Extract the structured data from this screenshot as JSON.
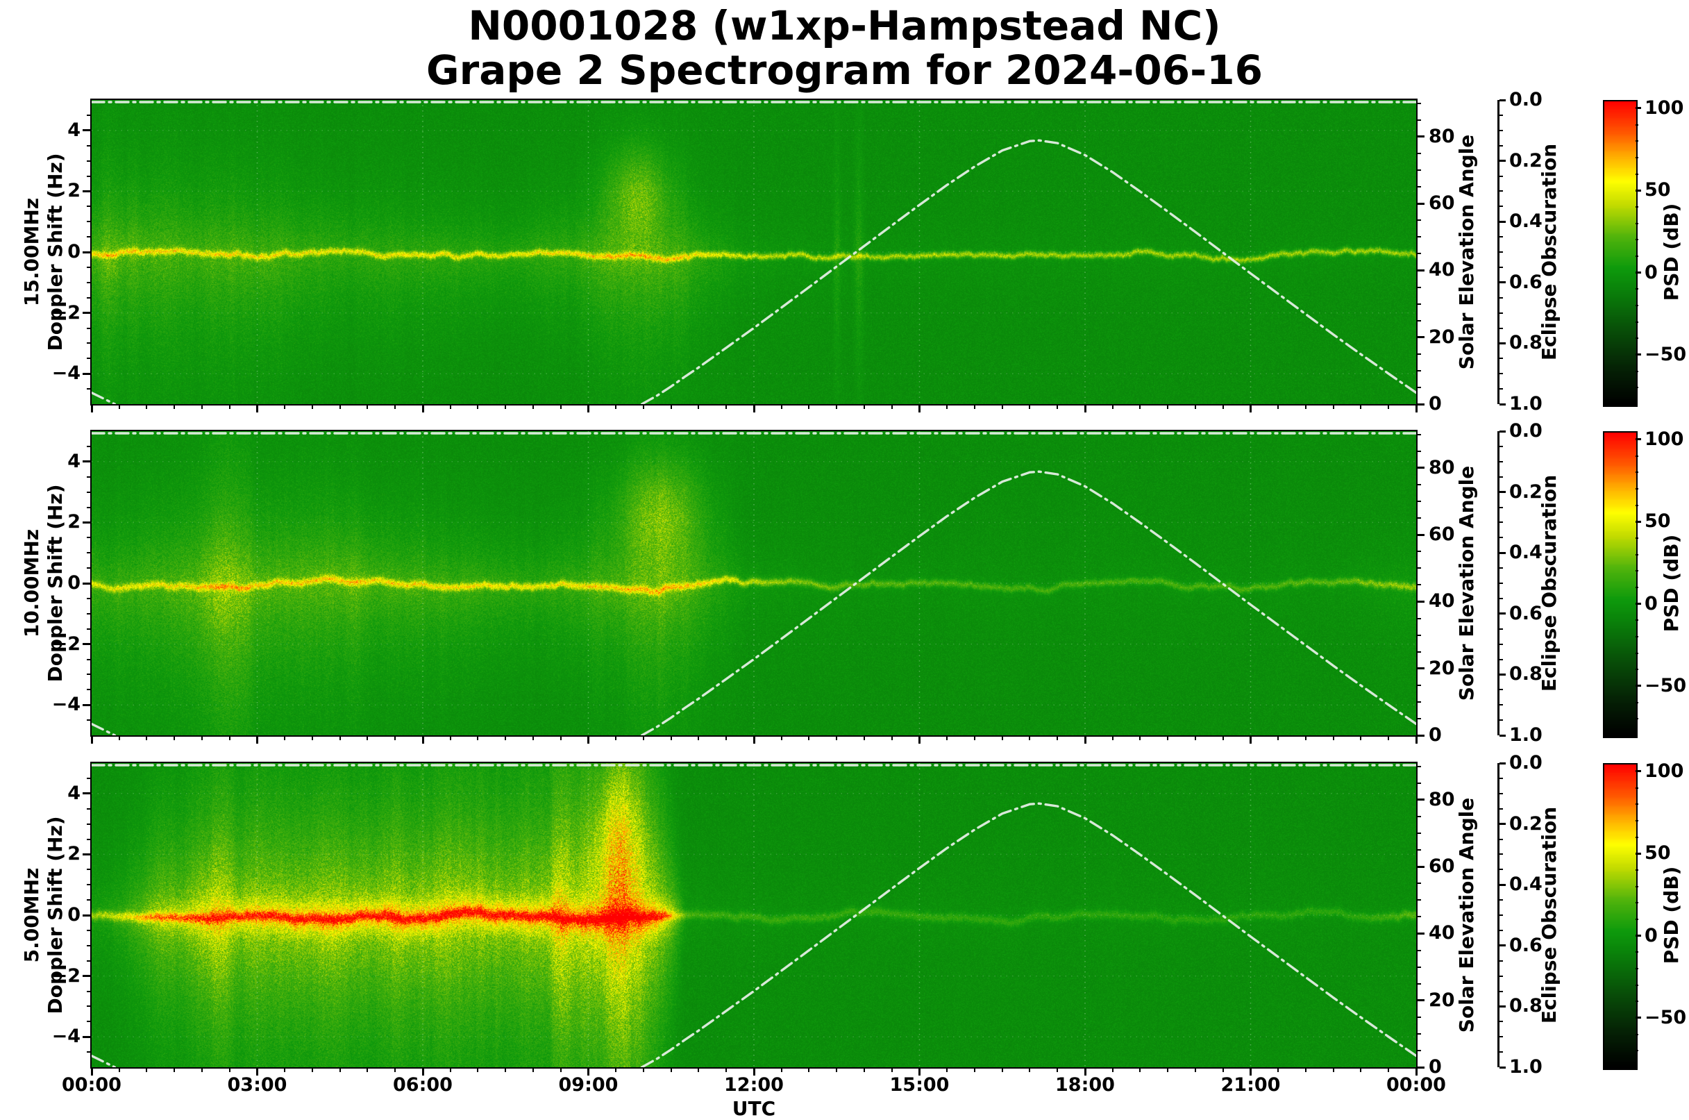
{
  "title": {
    "line1": "N0001028 (w1xp-Hampstead NC)",
    "line2": "Grape 2 Spectrogram for 2024-06-16"
  },
  "x_axis": {
    "label": "UTC",
    "ticks": [
      "00:00",
      "03:00",
      "06:00",
      "09:00",
      "12:00",
      "15:00",
      "18:00",
      "21:00",
      "00:00"
    ],
    "tick_hours": [
      0,
      3,
      6,
      9,
      12,
      15,
      18,
      21,
      24
    ]
  },
  "panels": [
    {
      "freq_label": "15.00MHz",
      "doppler_label": "Doppler Shift (Hz)",
      "y_ticks": [
        "4",
        "2",
        "0",
        "−2",
        "−4"
      ],
      "y_tick_values": [
        4,
        2,
        0,
        -2,
        -4
      ]
    },
    {
      "freq_label": "10.00MHz",
      "doppler_label": "Doppler Shift (Hz)",
      "y_ticks": [
        "4",
        "2",
        "0",
        "−2",
        "−4"
      ],
      "y_tick_values": [
        4,
        2,
        0,
        -2,
        -4
      ]
    },
    {
      "freq_label": "5.00MHz",
      "doppler_label": "Doppler Shift (Hz)",
      "y_ticks": [
        "4",
        "2",
        "0",
        "−2",
        "−4"
      ],
      "y_tick_values": [
        4,
        2,
        0,
        -2,
        -4
      ]
    }
  ],
  "right_axes": {
    "solar": {
      "label": "Solar Elevation Angle",
      "ticks": [
        "80",
        "60",
        "40",
        "20",
        "0"
      ],
      "tick_values": [
        80,
        60,
        40,
        20,
        0
      ],
      "axis_range": [
        0,
        91
      ]
    },
    "eclipse": {
      "label": "Eclipse Obscuration",
      "ticks": [
        "0.0",
        "0.2",
        "0.4",
        "0.6",
        "0.8",
        "1.0"
      ],
      "tick_values": [
        0.0,
        0.2,
        0.4,
        0.6,
        0.8,
        1.0
      ],
      "inverted": true
    },
    "colorbar": {
      "label": "PSD (dB)",
      "ticks": [
        "100",
        "50",
        "0",
        "−50"
      ],
      "tick_values": [
        100,
        50,
        0,
        -50
      ],
      "display_range": [
        -80,
        105
      ]
    }
  },
  "chart_data": {
    "type": "heatmap",
    "subtype": "doppler-spectrogram",
    "station": "N0001028 (w1xp-Hampstead NC)",
    "date": "2024-06-16",
    "x_range_hours": [
      0,
      24
    ],
    "doppler_range_hz": [
      -5,
      5
    ],
    "psd_range_db": [
      -80,
      105
    ],
    "grid": true,
    "colormap_stops_db_rgb": [
      [
        -80,
        [
          0,
          0,
          0
        ]
      ],
      [
        -58,
        [
          5,
          34,
          5
        ]
      ],
      [
        -34,
        [
          8,
          80,
          8
        ]
      ],
      [
        -8,
        [
          10,
          134,
          10
        ]
      ],
      [
        3,
        [
          14,
          154,
          12
        ]
      ],
      [
        22,
        [
          80,
          180,
          12
        ]
      ],
      [
        42,
        [
          196,
          220,
          0
        ]
      ],
      [
        56,
        [
          255,
          255,
          0
        ]
      ],
      [
        71,
        [
          255,
          176,
          0
        ]
      ],
      [
        85,
        [
          255,
          92,
          0
        ]
      ],
      [
        105,
        [
          255,
          0,
          0
        ]
      ]
    ],
    "solar_elevation_deg": {
      "axis_range": [
        0,
        91
      ],
      "segments": [
        [
          [
            0,
            3.4
          ],
          [
            0.21,
            1.7
          ],
          [
            0.42,
            0
          ]
        ],
        [
          [
            9.97,
            0
          ],
          [
            10.25,
            2.6
          ],
          [
            10.5,
            5.3
          ],
          [
            10.75,
            8.2
          ],
          [
            11,
            11.0
          ],
          [
            11.5,
            16.9
          ],
          [
            12,
            22.8
          ],
          [
            12.5,
            28.9
          ],
          [
            13,
            35.0
          ],
          [
            13.5,
            41.2
          ],
          [
            14,
            47.3
          ],
          [
            14.5,
            53.5
          ],
          [
            15,
            59.6
          ],
          [
            15.5,
            65.6
          ],
          [
            16,
            71.1
          ],
          [
            16.5,
            75.9
          ],
          [
            17,
            78.7
          ],
          [
            17.17,
            78.9
          ],
          [
            17.5,
            78.1
          ],
          [
            18,
            74.5
          ],
          [
            18.5,
            69.4
          ],
          [
            19,
            63.6
          ],
          [
            19.5,
            57.6
          ],
          [
            20,
            51.5
          ],
          [
            20.5,
            45.3
          ],
          [
            21,
            39.1
          ],
          [
            21.5,
            33.0
          ],
          [
            22,
            26.9
          ],
          [
            22.5,
            20.8
          ],
          [
            23,
            14.9
          ],
          [
            23.5,
            9.1
          ],
          [
            24,
            3.4
          ]
        ]
      ]
    },
    "eclipse_obscuration": {
      "points": [
        [
          0,
          0.0
        ],
        [
          24,
          0.0
        ]
      ]
    },
    "panels": [
      {
        "frequency_mhz": 15.0,
        "features": "bright doppler carrier near 0 Hz all day; diffuse spread mostly below carrier 00:00-11:30 UTC; upward plume to +3 Hz near 10:00 UTC; thin noisy line after 12:00",
        "line_sigma": 0.07,
        "line_amp": [
          [
            0,
            40
          ],
          [
            6,
            40
          ],
          [
            9.5,
            44
          ],
          [
            10.5,
            46
          ],
          [
            12,
            40
          ],
          [
            18,
            38
          ],
          [
            24,
            38
          ]
        ],
        "spread_amp": [
          [
            0,
            18
          ],
          [
            0.7,
            22
          ],
          [
            1.5,
            20
          ],
          [
            2.5,
            22
          ],
          [
            3.5,
            18
          ],
          [
            5,
            15
          ],
          [
            6,
            16
          ],
          [
            7.5,
            14
          ],
          [
            8.7,
            18
          ],
          [
            9.5,
            24
          ],
          [
            10.3,
            26
          ],
          [
            11,
            16
          ],
          [
            11.8,
            7
          ],
          [
            12.6,
            4
          ],
          [
            14,
            3
          ],
          [
            24,
            2
          ]
        ],
        "spread_sigma": [
          [
            0,
            1.2
          ],
          [
            1,
            1.5
          ],
          [
            2,
            1.7
          ],
          [
            3,
            1.5
          ],
          [
            4,
            1.3
          ],
          [
            5,
            1.2
          ],
          [
            6,
            1.1
          ],
          [
            7,
            1.0
          ],
          [
            8,
            1.0
          ],
          [
            9,
            1.3
          ],
          [
            10,
            1.8
          ],
          [
            11,
            1.3
          ],
          [
            12,
            0.7
          ],
          [
            24,
            0.5
          ]
        ],
        "asym": 1.35,
        "plume": {
          "t": 9.9,
          "dt": 0.55,
          "f": 1.9,
          "df": 1.5,
          "amp": 22
        },
        "streaks": [
          {
            "t": 0.3,
            "dt": 0.15,
            "amp": 10
          },
          {
            "t": 13.5,
            "dt": 0.06,
            "amp": 10
          },
          {
            "t": 13.9,
            "dt": 0.08,
            "amp": 12
          }
        ]
      },
      {
        "frequency_mhz": 10.0,
        "features": "carrier near 0 Hz with strong spread bumps 01:00-06:00 and plume to +4 Hz near 10:30 UTC; spread collapses after 11:30; faint line afternoon, brightening near 24:00",
        "line_sigma": 0.08,
        "line_amp": [
          [
            0,
            34
          ],
          [
            2,
            38
          ],
          [
            5,
            40
          ],
          [
            8,
            42
          ],
          [
            10,
            44
          ],
          [
            11.5,
            42
          ],
          [
            12.5,
            32
          ],
          [
            14,
            24
          ],
          [
            17,
            20
          ],
          [
            20,
            20
          ],
          [
            22.5,
            24
          ],
          [
            23.5,
            30
          ],
          [
            24,
            32
          ]
        ],
        "spread_amp": [
          [
            0,
            16
          ],
          [
            1,
            20
          ],
          [
            2,
            26
          ],
          [
            2.7,
            30
          ],
          [
            3.3,
            26
          ],
          [
            4,
            24
          ],
          [
            4.8,
            26
          ],
          [
            5.5,
            22
          ],
          [
            6.3,
            20
          ],
          [
            7,
            18
          ],
          [
            8,
            15
          ],
          [
            8.8,
            18
          ],
          [
            9.6,
            24
          ],
          [
            10.4,
            26
          ],
          [
            11,
            18
          ],
          [
            11.6,
            9
          ],
          [
            12.3,
            5
          ],
          [
            13.5,
            3
          ],
          [
            22,
            2.5
          ],
          [
            23,
            5
          ],
          [
            24,
            8
          ]
        ],
        "spread_sigma": [
          [
            0,
            1.3
          ],
          [
            1.5,
            1.8
          ],
          [
            2.5,
            2.3
          ],
          [
            3.5,
            1.9
          ],
          [
            5,
            1.6
          ],
          [
            6,
            1.4
          ],
          [
            7,
            1.2
          ],
          [
            8,
            1.1
          ],
          [
            9,
            1.4
          ],
          [
            10,
            2.0
          ],
          [
            11,
            1.7
          ],
          [
            12,
            0.8
          ],
          [
            24,
            0.8
          ]
        ],
        "asym": 1.3,
        "plume": {
          "t": 10.3,
          "dt": 0.75,
          "f": 2.3,
          "df": 1.8,
          "amp": 24
        },
        "streaks": [
          {
            "t": 2.3,
            "dt": 0.25,
            "amp": 12
          }
        ]
      },
      {
        "frequency_mhz": 5.0,
        "features": "very strong broadband emission 01:00-10:30 UTC filling ±5 Hz with yellow halo and orange/red core at carrier; sharp daytime cutoff ~10:40; faint thin line 11:00-24:00 with slight brightening at right edge",
        "line_sigma": 0.1,
        "line_amp": [
          [
            0,
            30
          ],
          [
            0.7,
            36
          ],
          [
            1,
            44
          ],
          [
            2,
            46
          ],
          [
            9,
            48
          ],
          [
            10.3,
            48
          ],
          [
            10.6,
            22
          ],
          [
            11,
            16
          ],
          [
            12,
            16
          ],
          [
            16,
            14
          ],
          [
            20,
            13
          ],
          [
            23,
            14
          ],
          [
            23.6,
            20
          ],
          [
            24,
            26
          ]
        ],
        "spread_amp": [
          [
            0,
            7
          ],
          [
            0.6,
            14
          ],
          [
            1,
            26
          ],
          [
            1.5,
            34
          ],
          [
            2,
            36
          ],
          [
            2.8,
            40
          ],
          [
            3.5,
            38
          ],
          [
            4.5,
            42
          ],
          [
            5.5,
            38
          ],
          [
            6.5,
            40
          ],
          [
            7.5,
            38
          ],
          [
            8.5,
            42
          ],
          [
            9.2,
            46
          ],
          [
            9.7,
            50
          ],
          [
            10.2,
            44
          ],
          [
            10.5,
            28
          ],
          [
            10.75,
            6
          ],
          [
            11.5,
            3
          ],
          [
            24,
            1.5
          ]
        ],
        "spread_sigma": [
          [
            0,
            1.2
          ],
          [
            1,
            2.0
          ],
          [
            2,
            2.5
          ],
          [
            3,
            2.8
          ],
          [
            4,
            2.6
          ],
          [
            5,
            2.7
          ],
          [
            6,
            2.6
          ],
          [
            7,
            2.8
          ],
          [
            8,
            3.1
          ],
          [
            9,
            3.4
          ],
          [
            9.7,
            3.9
          ],
          [
            10.3,
            3.0
          ],
          [
            10.7,
            1.0
          ],
          [
            12,
            0.6
          ],
          [
            24,
            0.5
          ]
        ],
        "asym": 1.05,
        "core_amp": [
          [
            0,
            0
          ],
          [
            1,
            8
          ],
          [
            2,
            18
          ],
          [
            3,
            24
          ],
          [
            4,
            30
          ],
          [
            4.8,
            26
          ],
          [
            5.5,
            32
          ],
          [
            6.5,
            28
          ],
          [
            7.5,
            32
          ],
          [
            8.5,
            30
          ],
          [
            9.3,
            36
          ],
          [
            9.9,
            38
          ],
          [
            10.3,
            28
          ],
          [
            10.6,
            8
          ],
          [
            10.8,
            0
          ],
          [
            24,
            0
          ]
        ],
        "plume": {
          "t": 9.55,
          "dt": 0.45,
          "f": 2.4,
          "df": 2.2,
          "amp": 24
        },
        "streaks": [
          {
            "t": 2.2,
            "dt": 0.22,
            "amp": 16
          },
          {
            "t": 8.45,
            "dt": 0.18,
            "amp": 18
          },
          {
            "t": 9.5,
            "dt": 0.3,
            "amp": 20
          }
        ]
      }
    ]
  }
}
